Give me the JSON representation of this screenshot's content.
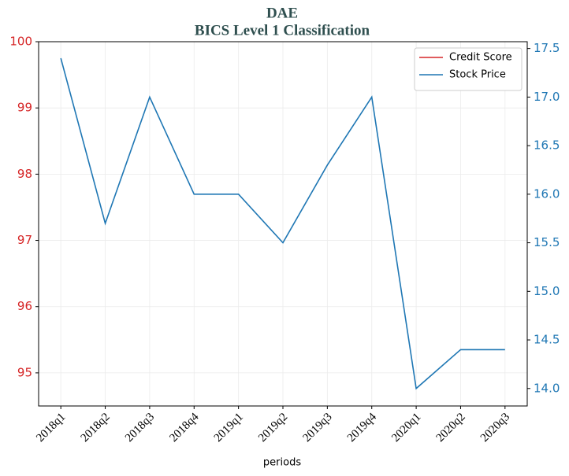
{
  "chart_data": {
    "type": "line",
    "title": "DAE",
    "subtitle": "BICS Level 1 Classification",
    "x_label": "periods",
    "categories": [
      "2018q1",
      "2018q2",
      "2018q3",
      "2018q4",
      "2019q1",
      "2019q2",
      "2019q3",
      "2019q4",
      "2020q1",
      "2020q2",
      "2020q3"
    ],
    "series": [
      {
        "name": "Credit Score",
        "color": "#d62728",
        "values": [
          null,
          null,
          null,
          null,
          null,
          null,
          null,
          null,
          null,
          null,
          null
        ]
      },
      {
        "name": "Stock Price",
        "color": "#1f77b4",
        "axis": "y2",
        "values": [
          17.4,
          15.7,
          17.0,
          16.0,
          16.0,
          15.5,
          16.3,
          17.0,
          14.0,
          14.4,
          14.4
        ]
      }
    ],
    "ylim": [
      94.5,
      100
    ],
    "yticks": [
      95,
      96,
      97,
      98,
      99,
      100
    ],
    "y2lim": [
      13.82,
      17.57
    ],
    "y2ticks": [
      {
        "value": 14,
        "label": "14.0"
      },
      14.5,
      {
        "value": 15,
        "label": "15.0"
      },
      15.5,
      {
        "value": 16,
        "label": "16.0"
      },
      16.5,
      {
        "value": 17,
        "label": "17.0"
      },
      17.5
    ],
    "ytick_color": "#d62728",
    "y2tick_color": "#1f77b4",
    "grid": true,
    "legend": "upper right"
  }
}
